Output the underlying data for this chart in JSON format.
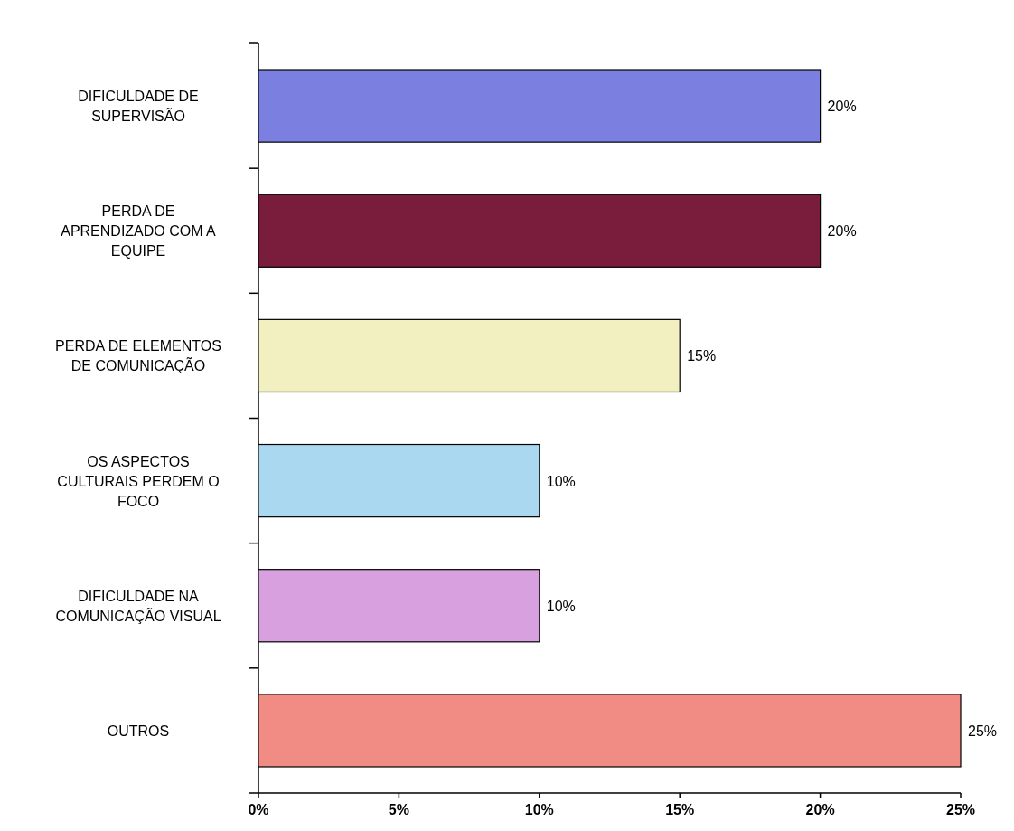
{
  "chart_data": {
    "type": "bar",
    "orientation": "horizontal",
    "categories": [
      "DIFICULDADE DE SUPERVISÃO",
      "PERDA DE APRENDIZADO COM A EQUIPE",
      "PERDA DE ELEMENTOS DE COMUNICAÇÃO",
      "OS ASPECTOS CULTURAIS PERDEM O FOCO",
      "DIFICULDADE NA COMUNICAÇÃO VISUAL",
      "OUTROS"
    ],
    "values": [
      20,
      20,
      15,
      10,
      10,
      25
    ],
    "value_labels": [
      "20%",
      "20%",
      "15%",
      "10%",
      "10%",
      "25%"
    ],
    "colors": [
      "#7b80e0",
      "#7a1d3d",
      "#f2efc0",
      "#a9d8f0",
      "#d9a0e0",
      "#f08c84"
    ],
    "xlim": [
      0,
      25
    ],
    "xticks": [
      {
        "value": 0,
        "label": "0%"
      },
      {
        "value": 5,
        "label": "5%"
      },
      {
        "value": 10,
        "label": "10%"
      },
      {
        "value": 15,
        "label": "15%"
      },
      {
        "value": 20,
        "label": "20%"
      },
      {
        "value": 25,
        "label": "25%"
      }
    ],
    "grid": false
  }
}
